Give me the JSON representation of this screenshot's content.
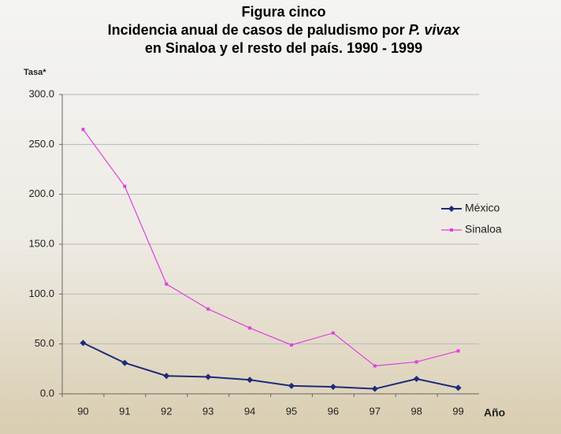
{
  "chart_data": {
    "type": "line",
    "title": [
      "Figura cinco",
      "Incidencia anual de casos de paludismo por",
      "P. vivax",
      "en Sinaloa y el resto del país. 1990 - 1999"
    ],
    "y_label": "Tasa*",
    "x_label": "Año",
    "categories": [
      "90",
      "91",
      "92",
      "93",
      "94",
      "95",
      "96",
      "97",
      "98",
      "99"
    ],
    "series": [
      {
        "name": "México",
        "color": "#1f2a7a",
        "marker": "diamond",
        "values": [
          51,
          31,
          18,
          17,
          14,
          8,
          7,
          5,
          15,
          6
        ]
      },
      {
        "name": "Sinaloa",
        "color": "#e040e0",
        "marker": "square",
        "values": [
          265,
          208,
          110,
          85,
          66,
          49,
          61,
          28,
          32,
          43
        ]
      }
    ],
    "ylim": [
      0,
      300
    ],
    "yticks": [
      {
        "value": 0,
        "label": "0.0"
      },
      {
        "value": 50,
        "label": "50.0"
      },
      {
        "value": 100,
        "label": "100.0"
      },
      {
        "value": 150,
        "label": "150.0"
      },
      {
        "value": 200,
        "label": "200.0"
      },
      {
        "value": 250,
        "label": "250.0"
      },
      {
        "value": 300,
        "label": "300.0"
      }
    ],
    "grid": true,
    "legend": "right"
  }
}
